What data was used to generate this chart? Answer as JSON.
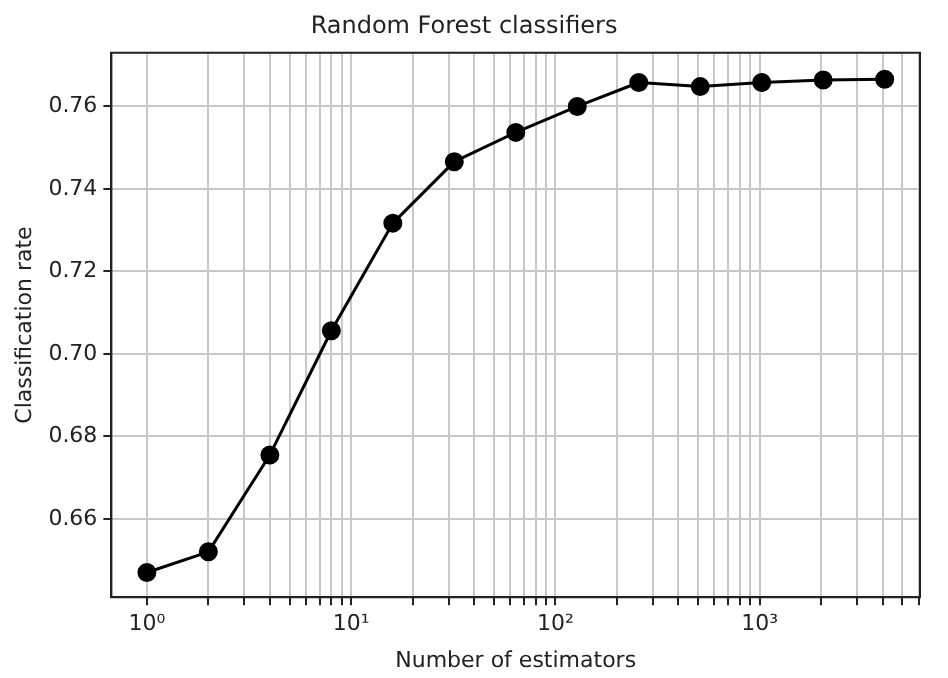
{
  "chart_data": {
    "type": "line",
    "title": "Random Forest classifiers",
    "xlabel": "Number of estimators",
    "ylabel": "Classification rate",
    "x": [
      1,
      2,
      4,
      8,
      16,
      32,
      64,
      128,
      256,
      512,
      1024,
      2048,
      4096
    ],
    "series": [
      {
        "color": "#000000",
        "values": [
          0.647,
          0.652,
          0.6755,
          0.7056,
          0.7317,
          0.7466,
          0.7537,
          0.76,
          0.7658,
          0.7648,
          0.7658,
          0.7664,
          0.7666
        ]
      }
    ],
    "log": "x",
    "xlim": [
      0.67,
      6100
    ],
    "ylim": [
      0.641,
      0.773
    ],
    "xticks": [
      {
        "value": 1,
        "label": "10⁰"
      },
      {
        "value": 2,
        "label": null
      },
      {
        "value": 3,
        "label": null
      },
      {
        "value": 4,
        "label": null
      },
      {
        "value": 5,
        "label": null
      },
      {
        "value": 6,
        "label": null
      },
      {
        "value": 7,
        "label": null
      },
      {
        "value": 8,
        "label": null
      },
      {
        "value": 9,
        "label": null
      },
      {
        "value": 10,
        "label": "10¹"
      },
      {
        "value": 20,
        "label": null
      },
      {
        "value": 30,
        "label": null
      },
      {
        "value": 40,
        "label": null
      },
      {
        "value": 50,
        "label": null
      },
      {
        "value": 60,
        "label": null
      },
      {
        "value": 70,
        "label": null
      },
      {
        "value": 80,
        "label": null
      },
      {
        "value": 90,
        "label": null
      },
      {
        "value": 100,
        "label": "10²"
      },
      {
        "value": 200,
        "label": null
      },
      {
        "value": 300,
        "label": null
      },
      {
        "value": 400,
        "label": null
      },
      {
        "value": 500,
        "label": null
      },
      {
        "value": 600,
        "label": null
      },
      {
        "value": 700,
        "label": null
      },
      {
        "value": 800,
        "label": null
      },
      {
        "value": 900,
        "label": null
      },
      {
        "value": 1000,
        "label": "10³"
      },
      {
        "value": 2000,
        "label": null
      },
      {
        "value": 3000,
        "label": null
      },
      {
        "value": 4000,
        "label": null
      },
      {
        "value": 5000,
        "label": null
      },
      {
        "value": 6000,
        "label": null
      }
    ],
    "yticks": [
      {
        "value": 0.66,
        "label": "0.66"
      },
      {
        "value": 0.68,
        "label": "0.68"
      },
      {
        "value": 0.7,
        "label": "0.70"
      },
      {
        "value": 0.72,
        "label": "0.72"
      },
      {
        "value": 0.74,
        "label": "0.74"
      },
      {
        "value": 0.76,
        "label": "0.76"
      }
    ],
    "grid": true,
    "marker": "circle",
    "line_style": "solid"
  }
}
